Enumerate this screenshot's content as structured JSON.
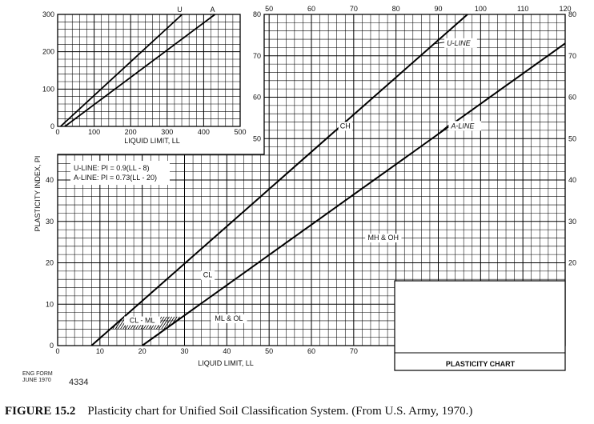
{
  "chart_data": [
    {
      "id": "main",
      "type": "line",
      "title": "PLASTICITY CHART",
      "xlabel": "LIQUID LIMIT, LL",
      "ylabel": "PLASTICITY INDEX, PI",
      "xlim": [
        0,
        120
      ],
      "ylim": [
        0,
        80
      ],
      "x_ticks_bottom": [
        0,
        10,
        20,
        30,
        40,
        50,
        60,
        70
      ],
      "x_ticks_top": [
        50,
        60,
        70,
        80,
        90,
        100,
        110,
        120
      ],
      "y_ticks_left": [
        0,
        10,
        20,
        30,
        40
      ],
      "y_ticks_right": [
        20,
        30,
        40,
        50,
        60,
        70,
        80
      ],
      "y_ticks_inner": [
        50,
        60,
        70,
        80
      ],
      "grid": true,
      "equations": [
        "U-LINE: PI = 0.9(LL - 8)",
        "A-LINE: PI = 0.73(LL - 20)"
      ],
      "series": [
        {
          "name": "U-LINE",
          "x": [
            8,
            96.9
          ],
          "y": [
            0,
            80
          ]
        },
        {
          "name": "A-LINE",
          "x": [
            20,
            120
          ],
          "y": [
            0,
            73
          ]
        }
      ],
      "zones": [
        {
          "label": "CH",
          "x": 68,
          "y": 52.5
        },
        {
          "label": "CL",
          "x": 35.5,
          "y": 16.5
        },
        {
          "label": "MH & OH",
          "x": 77,
          "y": 25.5
        },
        {
          "label": "ML & OL",
          "x": 40.5,
          "y": 6
        },
        {
          "label": "CL - ML",
          "x": 20,
          "y": 5.5
        }
      ],
      "callouts": [
        {
          "label": "U-LINE",
          "x": 92,
          "y": 72.5
        },
        {
          "label": "A-LINE",
          "x": 93,
          "y": 52.5
        }
      ],
      "cl_ml_band": {
        "pi_low": 4,
        "pi_high": 7
      }
    },
    {
      "id": "inset",
      "type": "line",
      "xlabel": "LIQUID LIMIT, LL",
      "xlim": [
        0,
        500
      ],
      "ylim": [
        0,
        300
      ],
      "x_ticks": [
        0,
        100,
        200,
        300,
        400,
        500
      ],
      "y_ticks": [
        0,
        100,
        200,
        300
      ],
      "grid": true,
      "series": [
        {
          "name": "U",
          "x": [
            8,
            341
          ],
          "y": [
            0,
            300
          ]
        },
        {
          "name": "A",
          "x": [
            20,
            431
          ],
          "y": [
            0,
            300
          ]
        }
      ]
    }
  ],
  "form": {
    "line1": "ENG FORM",
    "line2": "JUNE 1970",
    "number": "4334"
  },
  "caption": {
    "label": "FIGURE 15.2",
    "text": "Plasticity chart for Unified Soil Classification System. (From U.S. Army, 1970.)"
  }
}
